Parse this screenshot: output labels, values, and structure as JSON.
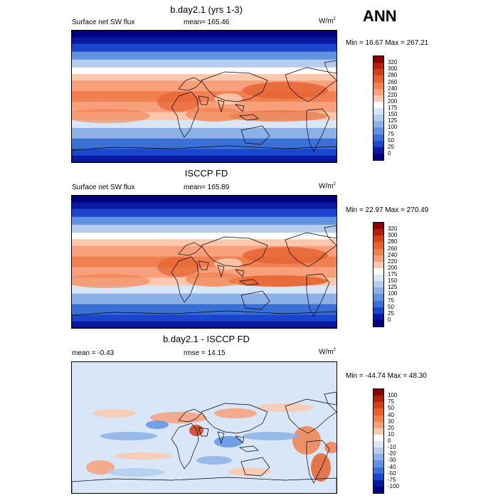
{
  "season": "ANN",
  "panels": [
    {
      "title": "b.day2.1 (yrs 1-3)",
      "left_label": "Surface net SW flux",
      "center_label": "mean= 165.46",
      "units_base": "W/m",
      "units_exp": "2",
      "minmax": "Min =  16.67 Max = 267.21",
      "colorbar": {
        "levels": [
          "320",
          "300",
          "280",
          "260",
          "240",
          "220",
          "200",
          "175",
          "150",
          "125",
          "100",
          "75",
          "50",
          "25",
          "0"
        ],
        "colors": [
          "#8b0000",
          "#b0200b",
          "#d0401a",
          "#e5622f",
          "#f08050",
          "#f8a07c",
          "#fbc8ae",
          "#ffffff",
          "#d8e6f7",
          "#b4cdef",
          "#8cb1e6",
          "#6192e0",
          "#3a6fd6",
          "#1a45cc",
          "#0818a0",
          "#00007a"
        ]
      }
    },
    {
      "title": "ISCCP FD",
      "left_label": "Surface net SW flux",
      "center_label": "mean= 165.89",
      "units_base": "W/m",
      "units_exp": "2",
      "minmax": "Min =  22.97 Max = 270.49",
      "colorbar": {
        "levels": [
          "320",
          "300",
          "280",
          "260",
          "240",
          "220",
          "200",
          "175",
          "150",
          "125",
          "100",
          "75",
          "50",
          "25",
          "0"
        ],
        "colors": [
          "#8b0000",
          "#b0200b",
          "#d0401a",
          "#e5622f",
          "#f08050",
          "#f8a07c",
          "#fbc8ae",
          "#ffffff",
          "#d8e6f7",
          "#b4cdef",
          "#8cb1e6",
          "#6192e0",
          "#3a6fd6",
          "#1a45cc",
          "#0818a0",
          "#00007a"
        ]
      }
    },
    {
      "title": "b.day2.1 - ISCCP FD",
      "left_label": "mean =  -0.43",
      "center_label": "rmse =  14.15",
      "units_base": "W/m",
      "units_exp": "2",
      "minmax": "Min = -44.74 Max =  48.30",
      "colorbar": {
        "levels": [
          "100",
          "75",
          "50",
          "40",
          "30",
          "20",
          "10",
          "0",
          "-10",
          "-20",
          "-30",
          "-40",
          "-50",
          "-75",
          "-100"
        ],
        "colors": [
          "#8b0000",
          "#b0200b",
          "#d0401a",
          "#e5622f",
          "#f08050",
          "#f8a07c",
          "#fbc8ae",
          "#ffffff",
          "#d8e6f7",
          "#b4cdef",
          "#8cb1e6",
          "#6192e0",
          "#3a6fd6",
          "#1a45cc",
          "#0818a0",
          "#00007a"
        ]
      }
    }
  ]
}
